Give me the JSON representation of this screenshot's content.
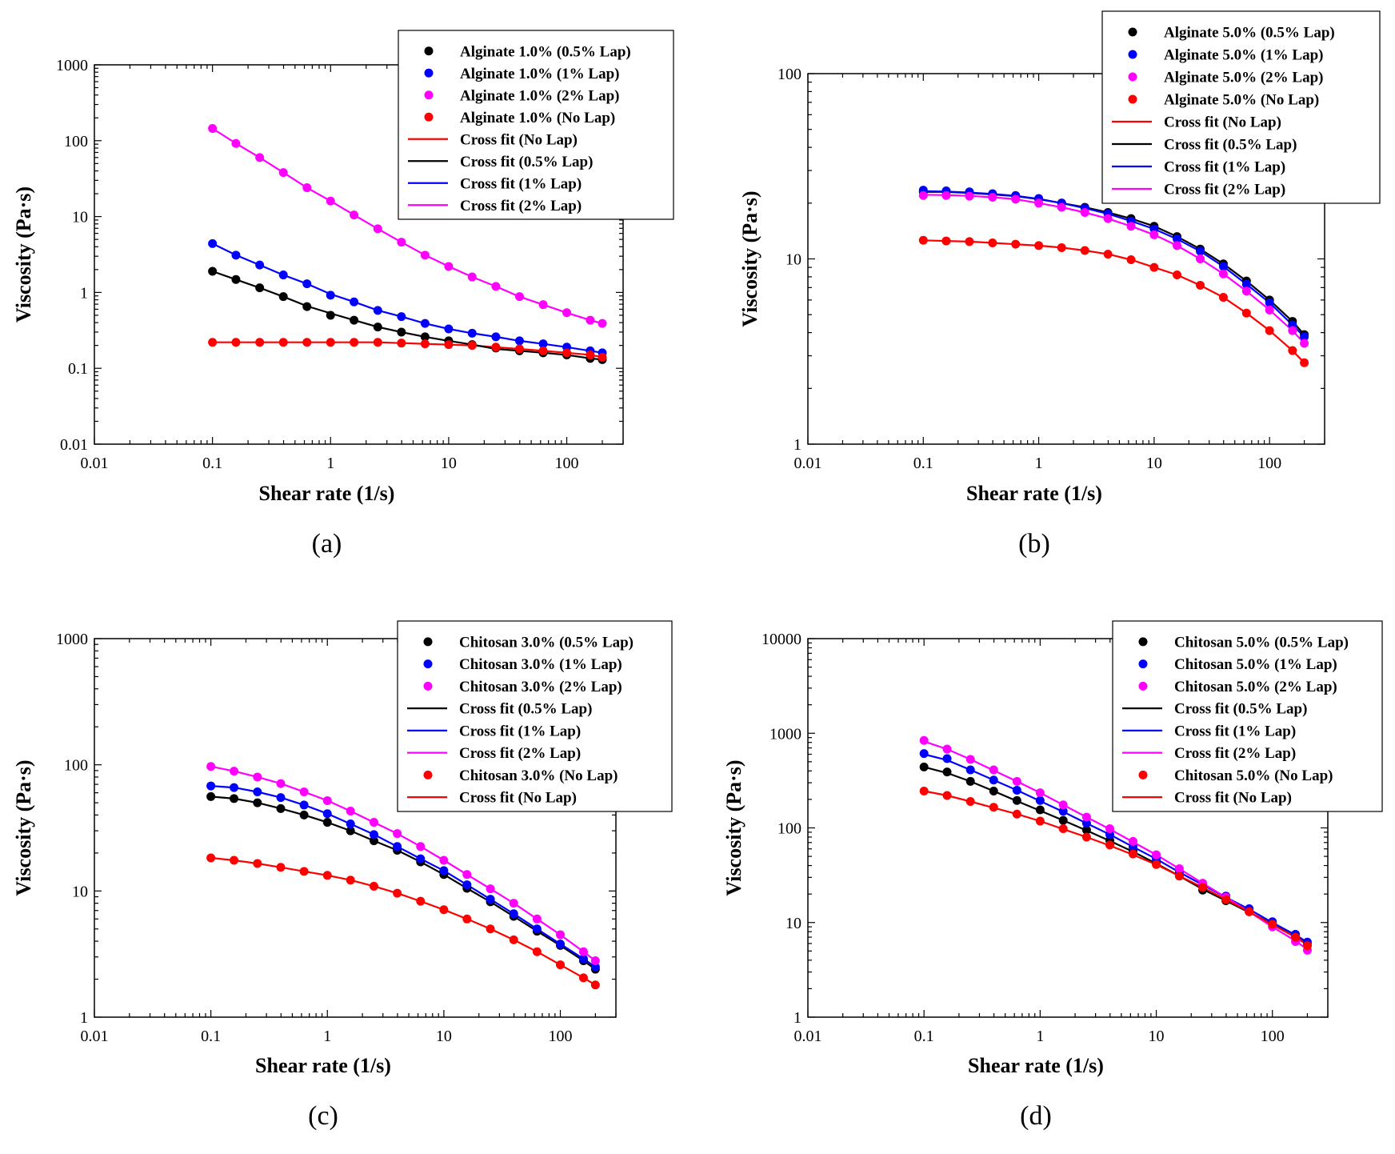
{
  "chart_data": [
    {
      "type": "scatter",
      "panel_label": "(a)",
      "xlabel": "Shear rate (1/s)",
      "ylabel": "Viscosity (Pa·s)",
      "xscale": "log",
      "yscale": "log",
      "xlim": [
        0.01,
        300
      ],
      "ylim": [
        0.01,
        1000
      ],
      "xticks": [
        "0.01",
        "0.1",
        "1",
        "10",
        "100"
      ],
      "yticks": [
        "0.01",
        "0.1",
        "1",
        "10",
        "100",
        "1000"
      ],
      "legend_position": "top-right",
      "x": [
        0.1,
        0.158,
        0.251,
        0.398,
        0.631,
        1,
        1.58,
        2.51,
        3.98,
        6.31,
        10,
        15.8,
        25.1,
        39.8,
        63.1,
        100,
        158,
        200
      ],
      "series": [
        {
          "name": "Alginate 1.0% (0.5% Lap)",
          "color": "#000000",
          "values": [
            1.9,
            1.48,
            1.15,
            0.88,
            0.65,
            0.5,
            0.43,
            0.35,
            0.3,
            0.26,
            0.23,
            0.205,
            0.185,
            0.17,
            0.16,
            0.15,
            0.135,
            0.13
          ]
        },
        {
          "name": "Alginate 1.0% (1% Lap)",
          "color": "#0000ff",
          "values": [
            4.4,
            3.1,
            2.3,
            1.7,
            1.3,
            0.92,
            0.75,
            0.58,
            0.48,
            0.39,
            0.33,
            0.29,
            0.26,
            0.23,
            0.21,
            0.19,
            0.17,
            0.16
          ]
        },
        {
          "name": "Alginate 1.0% (2% Lap)",
          "color": "#ff00ff",
          "values": [
            145,
            92,
            60,
            38,
            24,
            16,
            10.5,
            6.9,
            4.6,
            3.1,
            2.2,
            1.6,
            1.2,
            0.88,
            0.69,
            0.54,
            0.43,
            0.39
          ]
        },
        {
          "name": "Alginate 1.0% (No Lap)",
          "color": "#ff0000",
          "values": [
            0.22,
            0.22,
            0.22,
            0.22,
            0.22,
            0.22,
            0.22,
            0.22,
            0.215,
            0.21,
            0.205,
            0.2,
            0.19,
            0.18,
            0.17,
            0.16,
            0.15,
            0.14
          ]
        }
      ],
      "fits": [
        {
          "name": "Cross fit (No Lap)",
          "color": "#ff0000",
          "values": [
            0.22,
            0.22,
            0.22,
            0.22,
            0.22,
            0.22,
            0.22,
            0.22,
            0.215,
            0.21,
            0.205,
            0.2,
            0.19,
            0.18,
            0.17,
            0.16,
            0.15,
            0.14
          ]
        },
        {
          "name": "Cross fit (0.5% Lap)",
          "color": "#000000",
          "values": [
            1.9,
            1.48,
            1.15,
            0.88,
            0.66,
            0.53,
            0.43,
            0.35,
            0.3,
            0.26,
            0.23,
            0.205,
            0.18,
            0.17,
            0.16,
            0.15,
            0.135,
            0.13
          ]
        },
        {
          "name": "Cross fit (1% Lap)",
          "color": "#0000ff",
          "values": [
            4.4,
            3.1,
            2.3,
            1.7,
            1.3,
            0.95,
            0.75,
            0.58,
            0.48,
            0.39,
            0.33,
            0.29,
            0.26,
            0.23,
            0.21,
            0.19,
            0.17,
            0.16
          ]
        },
        {
          "name": "Cross fit (2% Lap)",
          "color": "#ff00ff",
          "values": [
            145,
            92,
            60,
            38,
            24,
            16,
            10.5,
            6.9,
            4.6,
            3.1,
            2.2,
            1.6,
            1.2,
            0.88,
            0.69,
            0.54,
            0.43,
            0.39
          ]
        }
      ]
    },
    {
      "type": "scatter",
      "panel_label": "(b)",
      "xlabel": "Shear rate (1/s)",
      "ylabel": "Viscosity (Pa·s)",
      "xscale": "log",
      "yscale": "log",
      "xlim": [
        0.01,
        300
      ],
      "ylim": [
        1,
        100
      ],
      "xticks": [
        "0.01",
        "0.1",
        "1",
        "10",
        "100"
      ],
      "yticks": [
        "1",
        "10",
        "100"
      ],
      "legend_position": "top-right",
      "x": [
        0.1,
        0.158,
        0.251,
        0.398,
        0.631,
        1,
        1.58,
        2.51,
        3.98,
        6.31,
        10,
        15.8,
        25.1,
        39.8,
        63.1,
        100,
        158,
        200
      ],
      "series": [
        {
          "name": "Alginate 5.0% (0.5% Lap)",
          "color": "#000000",
          "values": [
            23,
            23,
            22.7,
            22.3,
            21.8,
            21,
            20,
            19,
            17.8,
            16.5,
            15,
            13.2,
            11.3,
            9.4,
            7.6,
            6.0,
            4.6,
            3.9
          ]
        },
        {
          "name": "Alginate 5.0% (1% Lap)",
          "color": "#0000ff",
          "values": [
            23.5,
            23.3,
            23,
            22.5,
            22,
            21.2,
            20,
            18.8,
            17.5,
            16,
            14.5,
            12.8,
            11,
            9.1,
            7.3,
            5.8,
            4.4,
            3.8
          ]
        },
        {
          "name": "Alginate 5.0% (2% Lap)",
          "color": "#ff00ff",
          "values": [
            22,
            22,
            21.8,
            21.5,
            21,
            20,
            19,
            17.8,
            16.5,
            15,
            13.5,
            11.8,
            10,
            8.3,
            6.7,
            5.3,
            4.1,
            3.5
          ]
        },
        {
          "name": "Alginate 5.0% (No Lap)",
          "color": "#ff0000",
          "values": [
            12.6,
            12.5,
            12.4,
            12.2,
            12,
            11.8,
            11.5,
            11.1,
            10.6,
            9.9,
            9.0,
            8.2,
            7.2,
            6.2,
            5.1,
            4.1,
            3.2,
            2.75
          ]
        }
      ],
      "fits": [
        {
          "name": "Cross fit (No Lap)",
          "color": "#ff0000",
          "values": [
            12.6,
            12.5,
            12.4,
            12.2,
            12,
            11.8,
            11.5,
            11.1,
            10.6,
            9.9,
            9.0,
            8.2,
            7.2,
            6.2,
            5.1,
            4.1,
            3.2,
            2.75
          ]
        },
        {
          "name": "Cross fit (0.5% Lap)",
          "color": "#000000",
          "values": [
            23,
            23,
            22.7,
            22.3,
            21.8,
            21,
            20,
            19,
            17.8,
            16.5,
            15,
            13.2,
            11.3,
            9.4,
            7.6,
            6.0,
            4.6,
            3.9
          ]
        },
        {
          "name": "Cross fit (1% Lap)",
          "color": "#0000ff",
          "values": [
            23.2,
            23.1,
            22.8,
            22.4,
            21.9,
            21.1,
            20,
            18.8,
            17.5,
            16,
            14.5,
            12.8,
            11,
            9.1,
            7.3,
            5.8,
            4.4,
            3.8
          ]
        },
        {
          "name": "Cross fit (2% Lap)",
          "color": "#ff00ff",
          "values": [
            22.2,
            22.1,
            21.9,
            21.5,
            21,
            20,
            19,
            17.8,
            16.5,
            15,
            13.5,
            11.8,
            10,
            8.3,
            6.7,
            5.3,
            4.1,
            3.5
          ]
        }
      ]
    },
    {
      "type": "scatter",
      "panel_label": "(c)",
      "xlabel": "Shear rate (1/s)",
      "ylabel": "Viscosity (Pa·s)",
      "xscale": "log",
      "yscale": "log",
      "xlim": [
        0.01,
        300
      ],
      "ylim": [
        1,
        1000
      ],
      "xticks": [
        "0.01",
        "0.1",
        "1",
        "10",
        "100"
      ],
      "yticks": [
        "1",
        "10",
        "100",
        "1000"
      ],
      "legend_position": "top-right",
      "x": [
        0.1,
        0.158,
        0.251,
        0.398,
        0.631,
        1,
        1.58,
        2.51,
        3.98,
        6.31,
        10,
        15.8,
        25.1,
        39.8,
        63.1,
        100,
        158,
        200
      ],
      "series": [
        {
          "name": "Chitosan 3.0% (0.5% Lap)",
          "color": "#000000",
          "values": [
            56,
            54,
            50,
            45,
            40,
            35,
            30,
            25,
            21,
            17,
            13.5,
            10.5,
            8.2,
            6.3,
            4.8,
            3.7,
            2.8,
            2.4
          ]
        },
        {
          "name": "Chitosan 3.0% (1% Lap)",
          "color": "#0000ff",
          "values": [
            68,
            66,
            61,
            55,
            48,
            41,
            34,
            28,
            22.5,
            18,
            14.5,
            11.2,
            8.6,
            6.6,
            5.0,
            3.8,
            2.9,
            2.5
          ]
        },
        {
          "name": "Chitosan 3.0% (2% Lap)",
          "color": "#ff00ff",
          "values": [
            97,
            89,
            80,
            71,
            61,
            52,
            43,
            35,
            28.5,
            22.5,
            17.5,
            13.5,
            10.4,
            8.0,
            6.0,
            4.5,
            3.3,
            2.8
          ]
        },
        {
          "name": "Chitosan 3.0% (No Lap)",
          "color": "#ff0000",
          "values": [
            18.3,
            17.5,
            16.5,
            15.4,
            14.3,
            13.3,
            12.2,
            10.9,
            9.6,
            8.3,
            7.1,
            6.0,
            5.0,
            4.1,
            3.3,
            2.6,
            2.05,
            1.8
          ]
        }
      ],
      "fits": [
        {
          "name": "Cross fit (0.5% Lap)",
          "color": "#000000",
          "values": [
            56,
            54,
            50,
            45,
            40,
            35,
            30,
            25,
            21,
            17,
            13.5,
            10.5,
            8.2,
            6.3,
            4.8,
            3.7,
            2.8,
            2.4
          ]
        },
        {
          "name": "Cross fit (1% Lap)",
          "color": "#0000ff",
          "values": [
            68,
            66,
            61,
            55,
            48,
            41,
            34,
            28,
            22.5,
            18,
            14.5,
            11.2,
            8.6,
            6.6,
            5.0,
            3.8,
            2.9,
            2.5
          ]
        },
        {
          "name": "Cross fit (2% Lap)",
          "color": "#ff00ff",
          "values": [
            97,
            89,
            80,
            71,
            61,
            52,
            43,
            35,
            28.5,
            22.5,
            17.5,
            13.5,
            10.4,
            8.0,
            6.0,
            4.5,
            3.3,
            2.8
          ]
        },
        {
          "name": "Cross fit (No Lap)",
          "color": "#ff0000",
          "values": [
            18.3,
            17.5,
            16.5,
            15.4,
            14.3,
            13.3,
            12.2,
            10.9,
            9.6,
            8.3,
            7.1,
            6.0,
            5.0,
            4.1,
            3.3,
            2.6,
            2.05,
            1.8
          ]
        }
      ]
    },
    {
      "type": "scatter",
      "panel_label": "(d)",
      "xlabel": "Shear rate (1/s)",
      "ylabel": "Viscosity (Pa·s)",
      "xscale": "log",
      "yscale": "log",
      "xlim": [
        0.01,
        300
      ],
      "ylim": [
        1,
        10000
      ],
      "xticks": [
        "0.01",
        "0.1",
        "1",
        "10",
        "100"
      ],
      "yticks": [
        "1",
        "10",
        "100",
        "1000",
        "10000"
      ],
      "legend_position": "top-right",
      "x": [
        0.1,
        0.158,
        0.251,
        0.398,
        0.631,
        1,
        1.58,
        2.51,
        3.98,
        6.31,
        10,
        15.8,
        25.1,
        39.8,
        63.1,
        100,
        158,
        200
      ],
      "series": [
        {
          "name": "Chitosan 5.0% (0.5% Lap)",
          "color": "#000000",
          "values": [
            440,
            390,
            310,
            245,
            195,
            155,
            120,
            95,
            74,
            56,
            42,
            31,
            22,
            17,
            13,
            9.8,
            7.0,
            5.8
          ]
        },
        {
          "name": "Chitosan 5.0% (1% Lap)",
          "color": "#0000ff",
          "values": [
            610,
            540,
            410,
            320,
            250,
            195,
            150,
            112,
            85,
            63,
            47,
            34,
            25,
            19,
            14,
            10.2,
            7.5,
            6.2
          ]
        },
        {
          "name": "Chitosan 5.0% (2% Lap)",
          "color": "#ff00ff",
          "values": [
            840,
            680,
            530,
            410,
            310,
            235,
            175,
            130,
            98,
            72,
            52,
            37,
            26,
            18.5,
            13,
            9,
            6.3,
            5.1
          ]
        },
        {
          "name": "Chitosan 5.0% (No Lap)",
          "color": "#ff0000",
          "values": [
            245,
            220,
            190,
            165,
            140,
            118,
            98,
            80,
            66,
            53,
            41,
            31,
            23.5,
            17.5,
            13,
            9.6,
            7.0,
            5.7
          ]
        }
      ],
      "fits": [
        {
          "name": "Cross fit (0.5% Lap)",
          "color": "#000000",
          "values": [
            440,
            380,
            310,
            245,
            192,
            152,
            120,
            94,
            73,
            56,
            42,
            31,
            22.5,
            17,
            12.8,
            9.7,
            7.0,
            5.9
          ]
        },
        {
          "name": "Cross fit (1% Lap)",
          "color": "#0000ff",
          "values": [
            600,
            520,
            410,
            320,
            250,
            192,
            148,
            112,
            85,
            63,
            47,
            34,
            25,
            18.5,
            13.8,
            10,
            7.4,
            6.2
          ]
        },
        {
          "name": "Cross fit (2% Lap)",
          "color": "#ff00ff",
          "values": [
            820,
            680,
            530,
            405,
            310,
            235,
            175,
            130,
            97,
            71,
            52,
            37,
            26,
            18.5,
            13,
            9,
            6.4,
            5.2
          ]
        },
        {
          "name": "Cross fit (No Lap)",
          "color": "#ff0000",
          "values": [
            245,
            220,
            190,
            163,
            140,
            118,
            97,
            80,
            65,
            52,
            41,
            31,
            23.5,
            17.5,
            13,
            9.5,
            7.0,
            5.8
          ]
        }
      ]
    }
  ],
  "legend_order": [
    [
      "s0",
      "s1",
      "s2",
      "s3",
      "f0",
      "f1",
      "f2",
      "f3"
    ],
    [
      "s0",
      "s1",
      "s2",
      "s3",
      "f0",
      "f1",
      "f2",
      "f3"
    ],
    [
      "s0",
      "s1",
      "s2",
      "f0",
      "f1",
      "f2",
      "s3",
      "f3"
    ],
    [
      "s0",
      "s1",
      "s2",
      "f0",
      "f1",
      "f2",
      "s3",
      "f3"
    ]
  ]
}
